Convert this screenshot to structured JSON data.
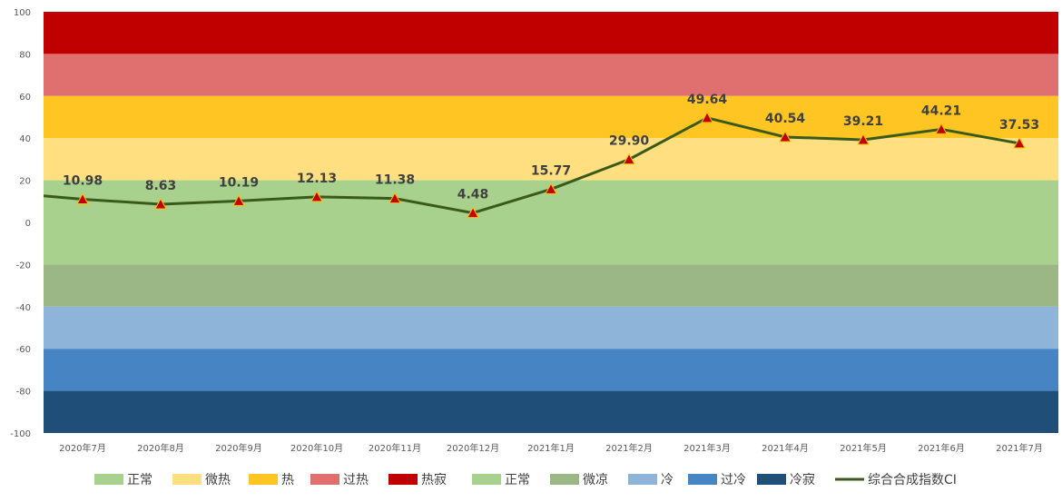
{
  "chart_data": {
    "type": "line",
    "categories": [
      "2020年7月",
      "2020年8月",
      "2020年9月",
      "2020年10月",
      "2020年11月",
      "2020年12月",
      "2021年1月",
      "2021年2月",
      "2021年3月",
      "2021年4月",
      "2021年5月",
      "2021年6月",
      "2021年7月"
    ],
    "series": [
      {
        "name": "综合合成指数CI",
        "values": [
          10.98,
          8.63,
          10.19,
          12.13,
          11.38,
          4.48,
          15.77,
          29.9,
          49.64,
          40.54,
          39.21,
          44.21,
          37.53
        ],
        "labels": [
          "10.98",
          "8.63",
          "10.19",
          "12.13",
          "11.38",
          "4.48",
          "15.77",
          "29.90",
          "49.64",
          "40.54",
          "39.21",
          "44.21",
          "37.53"
        ],
        "start_value": 12.6,
        "color": "#3a5a1c",
        "marker_color": "#c00000"
      }
    ],
    "ylim": [
      -100,
      100
    ],
    "yticks": [
      100,
      80,
      60,
      40,
      20,
      0,
      -20,
      -40,
      -60,
      -80,
      -100
    ],
    "bands": [
      {
        "name": "热寂",
        "from": 80,
        "to": 100,
        "color": "#c00000"
      },
      {
        "name": "过热",
        "from": 60,
        "to": 80,
        "color": "#e06f6f"
      },
      {
        "name": "热",
        "from": 40,
        "to": 60,
        "color": "#ffc623"
      },
      {
        "name": "微热",
        "from": 20,
        "to": 40,
        "color": "#ffdf7f"
      },
      {
        "name": "正常",
        "from": 0,
        "to": 20,
        "color": "#a9d18e"
      },
      {
        "name": "正常",
        "from": -20,
        "to": 0,
        "color": "#a9d18e"
      },
      {
        "name": "微凉",
        "from": -40,
        "to": -20,
        "color": "#9bb785"
      },
      {
        "name": "冷",
        "from": -60,
        "to": -40,
        "color": "#8fb4da"
      },
      {
        "name": "过冷",
        "from": -80,
        "to": -60,
        "color": "#4784c4"
      },
      {
        "name": "冷寂",
        "from": -100,
        "to": -80,
        "color": "#1f4e79"
      }
    ],
    "legend": [
      {
        "label": "正常",
        "color": "#a9d18e",
        "kind": "box"
      },
      {
        "label": "微热",
        "color": "#ffdf7f",
        "kind": "box"
      },
      {
        "label": "热",
        "color": "#ffc623",
        "kind": "box"
      },
      {
        "label": "过热",
        "color": "#e06f6f",
        "kind": "box"
      },
      {
        "label": "热寂",
        "color": "#c00000",
        "kind": "box"
      },
      {
        "label": "正常",
        "color": "#a9d18e",
        "kind": "box"
      },
      {
        "label": "微凉",
        "color": "#9bb785",
        "kind": "box"
      },
      {
        "label": "冷",
        "color": "#8fb4da",
        "kind": "box"
      },
      {
        "label": "过冷",
        "color": "#4784c4",
        "kind": "box"
      },
      {
        "label": "冷寂",
        "color": "#1f4e79",
        "kind": "box"
      },
      {
        "label": "综合合成指数CI",
        "color": "#3a5a1c",
        "kind": "line"
      }
    ],
    "legend_position": "bottom",
    "title": "",
    "xlabel": "",
    "ylabel": ""
  }
}
